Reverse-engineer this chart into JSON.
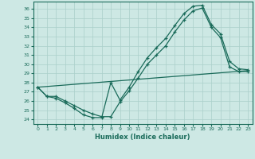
{
  "xlabel": "Humidex (Indice chaleur)",
  "bg_color": "#cde8e4",
  "line_color": "#1a6b5a",
  "xlim": [
    -0.5,
    23.5
  ],
  "ylim": [
    23.5,
    36.8
  ],
  "xticks": [
    0,
    1,
    2,
    3,
    4,
    5,
    6,
    7,
    8,
    9,
    10,
    11,
    12,
    13,
    14,
    15,
    16,
    17,
    18,
    19,
    20,
    21,
    22,
    23
  ],
  "yticks": [
    24,
    25,
    26,
    27,
    28,
    29,
    30,
    31,
    32,
    33,
    34,
    35,
    36
  ],
  "grid_color": "#aacfca",
  "line1_x": [
    0,
    1,
    2,
    3,
    4,
    5,
    6,
    7,
    8,
    9,
    10,
    11,
    12,
    13,
    14,
    15,
    16,
    17,
    18,
    19,
    20,
    21,
    22,
    23
  ],
  "line1_y": [
    27.5,
    26.5,
    26.3,
    25.8,
    25.2,
    24.5,
    24.2,
    24.2,
    28.0,
    26.1,
    27.5,
    29.2,
    30.7,
    31.8,
    32.8,
    34.2,
    35.5,
    36.3,
    36.4,
    34.3,
    33.3,
    30.3,
    29.5,
    29.4
  ],
  "line2_x": [
    0,
    1,
    2,
    3,
    4,
    5,
    6,
    7,
    8,
    9,
    10,
    11,
    12,
    13,
    14,
    15,
    16,
    17,
    18,
    19,
    20,
    21,
    22,
    23
  ],
  "line2_y": [
    27.5,
    26.5,
    26.5,
    26.0,
    25.5,
    25.0,
    24.6,
    24.3,
    24.3,
    25.9,
    27.1,
    28.5,
    30.0,
    31.0,
    32.0,
    33.5,
    34.8,
    35.8,
    36.1,
    34.0,
    32.9,
    29.7,
    29.2,
    29.2
  ],
  "line3_x": [
    0,
    23
  ],
  "line3_y": [
    27.5,
    29.3
  ]
}
